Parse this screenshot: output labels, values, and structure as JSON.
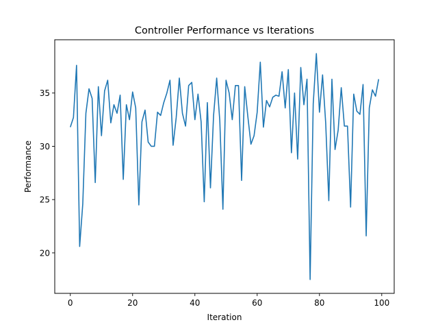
{
  "chart_data": {
    "type": "line",
    "title": "Controller Performance vs Iterations",
    "xlabel": "Iteration",
    "ylabel": "Performance",
    "xlim": [
      -5,
      104
    ],
    "ylim": [
      16.2,
      40.0
    ],
    "xticks": [
      0,
      20,
      40,
      60,
      80,
      100
    ],
    "yticks": [
      20,
      25,
      30,
      35
    ],
    "grid": false,
    "color": "#1f77b4",
    "series": [
      {
        "x": [
          0,
          1,
          2,
          3,
          4,
          5,
          6,
          7,
          8,
          9,
          10,
          11,
          12,
          13,
          14,
          15,
          16,
          17,
          18,
          19,
          20,
          21,
          22,
          23,
          24,
          25,
          26,
          27,
          28,
          29,
          30,
          31,
          32,
          33,
          34,
          35,
          36,
          37,
          38,
          39,
          40,
          41,
          42,
          43,
          44,
          45,
          46,
          47,
          48,
          49,
          50,
          51,
          52,
          53,
          54,
          55,
          56,
          57,
          58,
          59,
          60,
          61,
          62,
          63,
          64,
          65,
          66,
          67,
          68,
          69,
          70,
          71,
          72,
          73,
          74,
          75,
          76,
          77,
          78,
          79,
          80,
          81,
          82,
          83,
          84,
          85,
          86,
          87,
          88,
          89,
          90,
          91,
          92,
          93,
          94,
          95,
          96,
          97,
          98,
          99
        ],
        "values": [
          31.8,
          32.7,
          37.6,
          20.6,
          24.6,
          33.1,
          35.4,
          34.5,
          26.6,
          35.6,
          31.0,
          35.2,
          36.2,
          32.2,
          33.9,
          33.1,
          34.8,
          26.9,
          33.9,
          32.5,
          35.1,
          33.6,
          24.5,
          32.3,
          33.4,
          30.4,
          30.0,
          30.0,
          33.2,
          32.9,
          34.1,
          35.0,
          36.2,
          30.1,
          32.7,
          36.4,
          33.1,
          31.9,
          35.7,
          36.0,
          32.5,
          34.9,
          32.3,
          24.8,
          34.1,
          26.1,
          32.9,
          36.4,
          32.4,
          24.1,
          36.2,
          35.0,
          32.5,
          35.7,
          35.7,
          26.8,
          35.6,
          32.8,
          30.2,
          31.0,
          33.2,
          37.9,
          31.8,
          34.3,
          33.7,
          34.6,
          34.8,
          34.7,
          37.0,
          33.6,
          37.2,
          29.4,
          35.0,
          28.8,
          37.4,
          33.9,
          36.3,
          17.5,
          34.0,
          38.7,
          33.2,
          36.7,
          32.2,
          24.9,
          36.3,
          29.7,
          31.5,
          35.5,
          31.9,
          31.9,
          24.3,
          34.9,
          33.3,
          33.0,
          35.8,
          21.6,
          33.6,
          35.3,
          34.7,
          36.3
        ]
      }
    ]
  }
}
